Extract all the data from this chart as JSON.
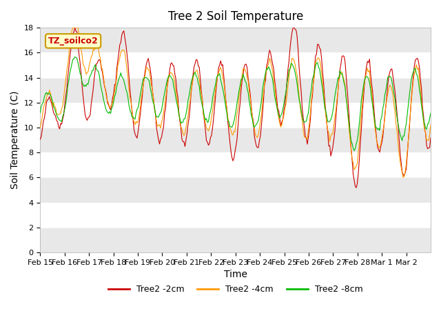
{
  "title": "Tree 2 Soil Temperature",
  "xlabel": "Time",
  "ylabel": "Soil Temperature (C)",
  "ylim": [
    0,
    18
  ],
  "yticks": [
    0,
    2,
    4,
    6,
    8,
    10,
    12,
    14,
    16,
    18
  ],
  "line_colors": {
    "2cm": "#cc0000",
    "4cm": "#ff9900",
    "8cm": "#00bb00"
  },
  "legend_labels": [
    "Tree2 -2cm",
    "Tree2 -4cm",
    "Tree2 -8cm"
  ],
  "annotation_text": "TZ_soilco2",
  "annotation_box_color": "#ffffcc",
  "annotation_box_edge": "#cc9900",
  "background_band_color": "#e8e8e8",
  "x_tick_labels": [
    "Feb 15",
    "Feb 16",
    "Feb 17",
    "Feb 18",
    "Feb 19",
    "Feb 20",
    "Feb 21",
    "Feb 22",
    "Feb 23",
    "Feb 24",
    "Feb 25",
    "Feb 26",
    "Feb 27",
    "Feb 28",
    "Mar 1",
    "Mar 2"
  ],
  "figsize": [
    6.4,
    4.8
  ],
  "dpi": 100
}
